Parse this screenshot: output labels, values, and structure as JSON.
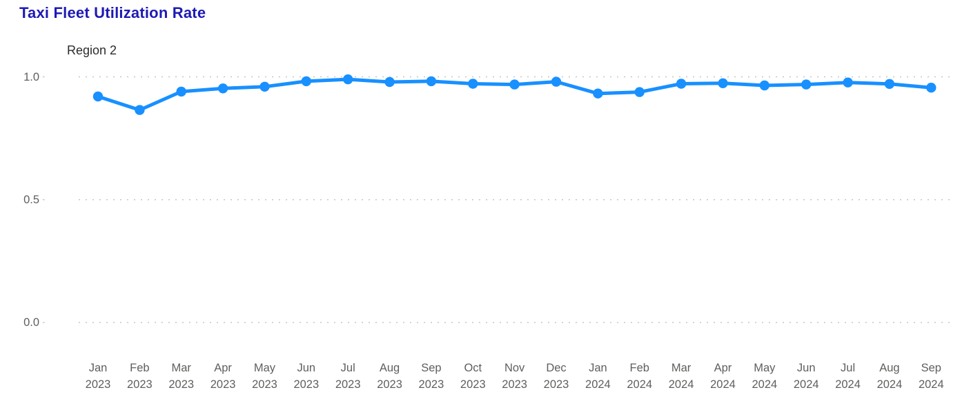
{
  "chart_data": {
    "type": "line",
    "title": "Taxi Fleet Utilization Rate",
    "subtitle": "Region 2",
    "categories": [
      "Jan 2023",
      "Feb 2023",
      "Mar 2023",
      "Apr 2023",
      "May 2023",
      "Jun 2023",
      "Jul 2023",
      "Aug 2023",
      "Sep 2023",
      "Oct 2023",
      "Nov 2023",
      "Dec 2023",
      "Jan 2024",
      "Feb 2024",
      "Mar 2024",
      "Apr 2024",
      "May 2024",
      "Jun 2024",
      "Jul 2024",
      "Aug 2024",
      "Sep 2024"
    ],
    "series": [
      {
        "name": "Region 2",
        "values": [
          0.92,
          0.865,
          0.94,
          0.953,
          0.96,
          0.982,
          0.99,
          0.979,
          0.982,
          0.972,
          0.969,
          0.98,
          0.932,
          0.938,
          0.972,
          0.974,
          0.965,
          0.969,
          0.977,
          0.971,
          0.956
        ]
      }
    ],
    "xlabel": "",
    "ylabel": "",
    "ylim": [
      0,
      1.06
    ],
    "yticks": [
      {
        "value": 1.0,
        "label": "1.0"
      },
      {
        "value": 0.5,
        "label": "0.5"
      },
      {
        "value": 0.0,
        "label": "0.0"
      }
    ],
    "grid": "horizontal-dotted",
    "legend": "none",
    "marker": "circle",
    "colors": {
      "line": "#1890FF",
      "marker": "#1890FF",
      "title": "#1D1AB5",
      "subtitle": "#2B2B2B",
      "axis_labels": "#605E5C",
      "gridline": "#C8C6C4",
      "background": "#FFFFFF"
    }
  }
}
